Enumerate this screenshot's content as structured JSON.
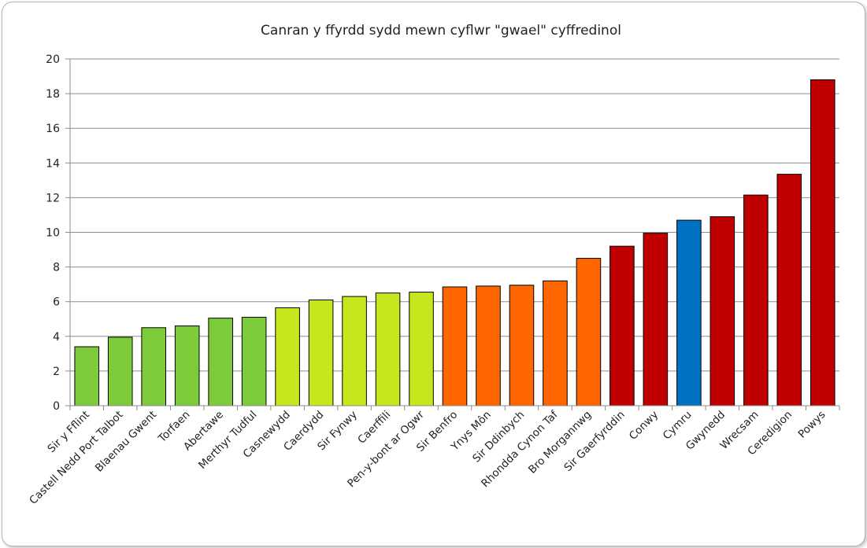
{
  "chart_data": {
    "type": "bar",
    "title": "Canran y ffyrdd sydd mewn cyflwr \"gwael\" cyffredinol",
    "xlabel": "",
    "ylabel": "",
    "ylim": [
      0,
      20
    ],
    "yticks": [
      0,
      2,
      4,
      6,
      8,
      10,
      12,
      14,
      16,
      18,
      20
    ],
    "grid": true,
    "legend": "none",
    "categories": [
      "Sir y Fflint",
      "Castell Nedd Port Talbot",
      "Blaenau Gwent",
      "Torfaen",
      "Abertawe",
      "Merthyr Tudful",
      "Casnewydd",
      "Caerdydd",
      "Sir Fynwy",
      "Caerffili",
      "Pen-y-bont ar Ogwr",
      "Sir Benfro",
      "Ynys Môn",
      "Sir Ddinbych",
      "Rhondda Cynon Taf",
      "Bro Morgannwg",
      "Sir Gaerfyrddin",
      "Conwy",
      "Cymru",
      "Gwynedd",
      "Wrecsam",
      "Ceredigion",
      "Powys"
    ],
    "values": [
      3.4,
      3.95,
      4.5,
      4.6,
      5.05,
      5.1,
      5.65,
      6.1,
      6.3,
      6.5,
      6.55,
      6.85,
      6.9,
      6.95,
      7.2,
      8.5,
      9.2,
      9.95,
      10.7,
      10.9,
      12.15,
      13.35,
      18.8
    ],
    "colors": [
      "#7dcb3a",
      "#7dcb3a",
      "#7dcb3a",
      "#7dcb3a",
      "#7dcb3a",
      "#7dcb3a",
      "#c8e61e",
      "#c8e61e",
      "#c8e61e",
      "#c8e61e",
      "#c8e61e",
      "#ff6600",
      "#ff6600",
      "#ff6600",
      "#ff6600",
      "#ff6600",
      "#c00000",
      "#c00000",
      "#0070c0",
      "#c00000",
      "#c00000",
      "#c00000",
      "#c00000"
    ]
  }
}
